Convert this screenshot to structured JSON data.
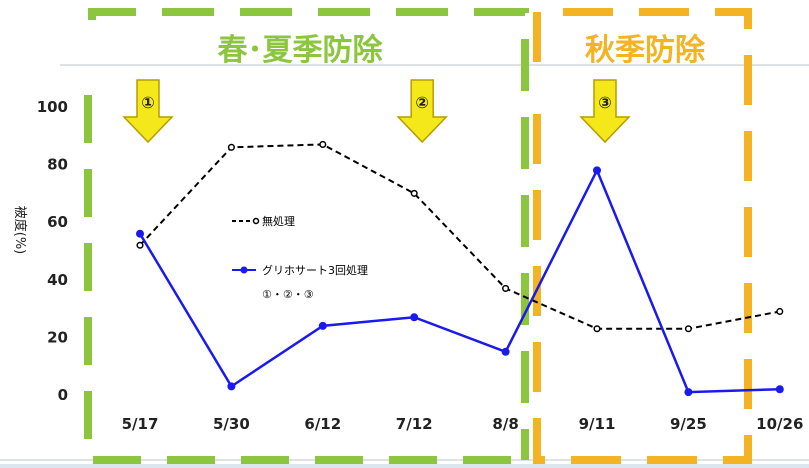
{
  "chart_data": {
    "type": "line",
    "categories": [
      "5/17",
      "5/30",
      "6/12",
      "7/12",
      "8/8",
      "9/11",
      "9/25",
      "10/26"
    ],
    "series": [
      {
        "name": "無処理",
        "values": [
          52,
          86,
          87,
          70,
          37,
          23,
          23,
          29
        ],
        "color": "#000000",
        "style": "dashed",
        "marker": "open-circle"
      },
      {
        "name": "グリホサート3回処理",
        "values": [
          56,
          3,
          24,
          27,
          15,
          78,
          1,
          2
        ],
        "color": "#1a1aee",
        "style": "solid",
        "marker": "filled-circle"
      }
    ],
    "ylabel": "被度(%)",
    "yticks": [
      0,
      20,
      40,
      60,
      80,
      100
    ],
    "ylim": [
      0,
      100
    ],
    "legend_note": "①・②・③",
    "grid": false
  },
  "annotations": {
    "spring_summer_label": "春･夏季防除",
    "autumn_label": "秋季防除",
    "arrows": [
      {
        "label": "①",
        "category": "5/17"
      },
      {
        "label": "②",
        "category": "7/12"
      },
      {
        "label": "③",
        "category": "9/11"
      }
    ]
  },
  "colors": {
    "background": "#ffffff",
    "outer": "#dbe6ef",
    "spring_box": "#8cc63f",
    "spring_text": "#8cc63f",
    "autumn_box": "#f3b323",
    "autumn_text": "#f3b323",
    "arrow_fill": "#f5e81a",
    "arrow_stroke": "#b89c00"
  }
}
